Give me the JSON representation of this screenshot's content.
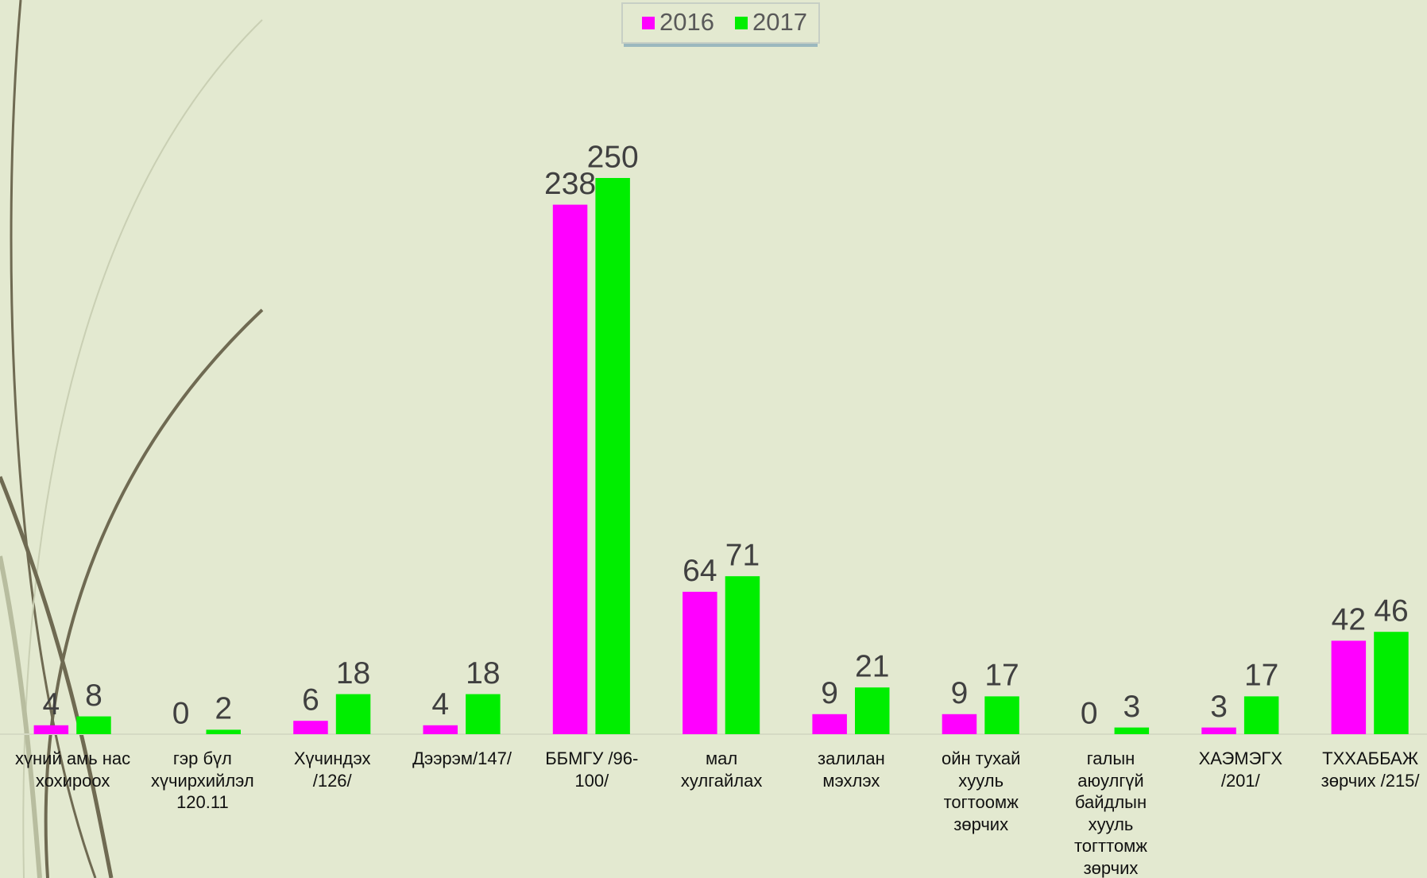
{
  "chart_data": {
    "type": "bar",
    "categories": [
      "хүний амь нас\nхохироох",
      "гэр бүл\nхүчирхийлэл\n120.11",
      "Хүчиндэх\n/126/",
      "Дээрэм/147/",
      "ББМГУ /96-\n100/",
      "мал\nхулгайлах",
      "залилан\nмэхлэх",
      "ойн тухай\nхууль\nтогтоомж\nзөрчих",
      "галын\nаюулгүй\nбайдлын\nхууль\nтогттомж\nзөрчих",
      "ХАЭМЭГХ\n/201/",
      "ТХХАББАЖ\nзөрчих /215/"
    ],
    "series": [
      {
        "name": "2016",
        "color": "#ff00ff",
        "values": [
          4,
          0,
          6,
          4,
          238,
          64,
          9,
          9,
          0,
          3,
          42
        ]
      },
      {
        "name": "2017",
        "color": "#00ee00",
        "values": [
          8,
          2,
          18,
          18,
          250,
          71,
          21,
          17,
          3,
          17,
          46
        ]
      }
    ],
    "ylim": [
      0,
      300
    ],
    "legend": "top",
    "grid": false
  }
}
